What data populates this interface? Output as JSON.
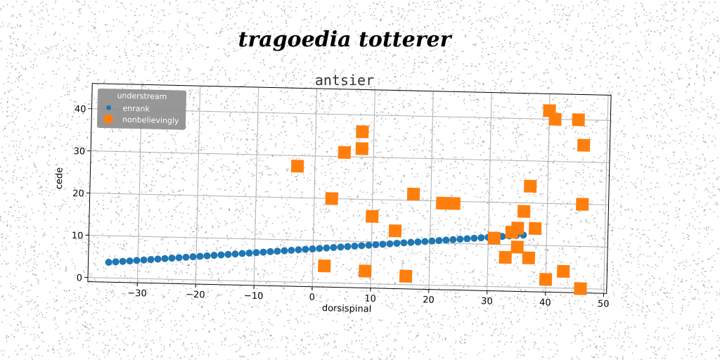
{
  "chart_data": {
    "type": "scatter",
    "title": "tragoedia totterer",
    "subtitle": "antsier",
    "xlabel": "dorsispinal",
    "ylabel": "cede",
    "xlim": [
      -38.5,
      50.5
    ],
    "ylim": [
      -1,
      46
    ],
    "x_ticks": [
      -30,
      -20,
      -10,
      0,
      10,
      20,
      30,
      40,
      50
    ],
    "y_ticks": [
      0,
      10,
      20,
      30,
      40
    ],
    "x_tick_labels": [
      "−30",
      "−20",
      "−10",
      "0",
      "10",
      "20",
      "30",
      "40",
      "50"
    ],
    "y_tick_labels": [
      "0",
      "10",
      "20",
      "30",
      "40"
    ],
    "grid": true,
    "legend": {
      "title": "understream",
      "placement": "top-left",
      "entries": [
        "enrank",
        "nonbelievingly"
      ]
    },
    "series": [
      {
        "name": "enrank",
        "marker": "circle",
        "color": "#1f77b4",
        "x_start": -35,
        "x_end": 36,
        "y_start": 3.7,
        "y_end": 12.4,
        "count": 60
      },
      {
        "name": "nonbelievingly",
        "marker": "square",
        "color": "#ff7f0e",
        "points": [
          [
            -3,
            27.5
          ],
          [
            3,
            20
          ],
          [
            5,
            31
          ],
          [
            8,
            36
          ],
          [
            8,
            32
          ],
          [
            10,
            16
          ],
          [
            2,
            4
          ],
          [
            9,
            3
          ],
          [
            14,
            12.7
          ],
          [
            16,
            2
          ],
          [
            17,
            21.5
          ],
          [
            22,
            19.5
          ],
          [
            24,
            19.5
          ],
          [
            31,
            11.5
          ],
          [
            33,
            7
          ],
          [
            34,
            13
          ],
          [
            35,
            9.5
          ],
          [
            35,
            14
          ],
          [
            36,
            18
          ],
          [
            37,
            7
          ],
          [
            37,
            24
          ],
          [
            38,
            14
          ],
          [
            40,
            2
          ],
          [
            40,
            42
          ],
          [
            41,
            40
          ],
          [
            43,
            4
          ],
          [
            45,
            40
          ],
          [
            46,
            0
          ],
          [
            46,
            20
          ],
          [
            46,
            34
          ]
        ]
      }
    ]
  },
  "colors": {
    "enrank": "#1f77b4",
    "nonbelievingly": "#ff7f0e",
    "legend_bg": "#8c8c8c",
    "grid": "#b0b0b0"
  }
}
